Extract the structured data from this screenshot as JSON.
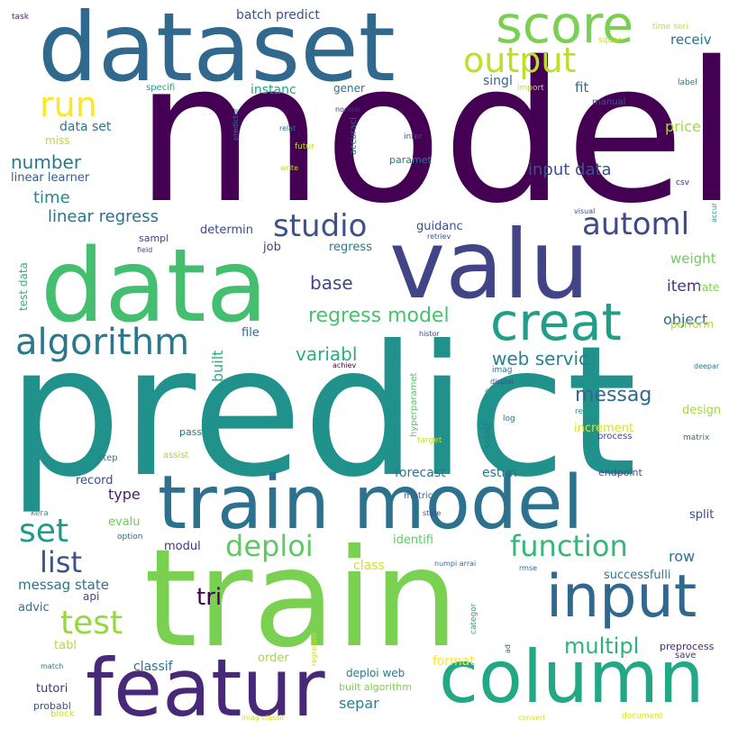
{
  "words": [
    {
      "text": "model",
      "color": "#440154"
    },
    {
      "text": "predict",
      "color": "#21918c"
    },
    {
      "text": "train",
      "color": "#7ad151"
    },
    {
      "text": "dataset",
      "color": "#31688e"
    },
    {
      "text": "data",
      "color": "#44bf70"
    },
    {
      "text": "valu",
      "color": "#414487"
    },
    {
      "text": "train model",
      "color": "#2c728e"
    },
    {
      "text": "featur",
      "color": "#482878"
    },
    {
      "text": "column",
      "color": "#22a884"
    },
    {
      "text": "input",
      "color": "#31688e"
    },
    {
      "text": "score",
      "color": "#7ad151"
    },
    {
      "text": "creat",
      "color": "#1f9e89"
    },
    {
      "text": "output",
      "color": "#bddf26"
    },
    {
      "text": "algorithm",
      "color": "#2a788e"
    },
    {
      "text": "run",
      "color": "#fde725"
    },
    {
      "text": "studio",
      "color": "#3b528b"
    },
    {
      "text": "automl",
      "color": "#3e4989"
    },
    {
      "text": "set",
      "color": "#1f9a8a"
    },
    {
      "text": "deploi",
      "color": "#5ec962"
    },
    {
      "text": "function",
      "color": "#35b779"
    },
    {
      "text": "list",
      "color": "#3b528b"
    },
    {
      "text": "test",
      "color": "#95d840"
    },
    {
      "text": "tri",
      "color": "#440154"
    },
    {
      "text": "multipl",
      "color": "#2db27d"
    },
    {
      "text": "regress model",
      "color": "#4ac16d"
    },
    {
      "text": "number",
      "color": "#2a788e"
    },
    {
      "text": "variabl",
      "color": "#29af7f"
    },
    {
      "text": "web servic",
      "color": "#26828e"
    },
    {
      "text": "messag",
      "color": "#31688e"
    },
    {
      "text": "base",
      "color": "#404688"
    },
    {
      "text": "linear regress",
      "color": "#2c728e"
    },
    {
      "text": "time",
      "color": "#23888e"
    },
    {
      "text": "input data",
      "color": "#3b528b"
    },
    {
      "text": "fit",
      "color": "#31688e"
    },
    {
      "text": "item",
      "color": "#46337e"
    },
    {
      "text": "object",
      "color": "#31688e"
    },
    {
      "text": "weight",
      "color": "#6ece58"
    },
    {
      "text": "price",
      "color": "#9fda3a"
    },
    {
      "text": "receiv",
      "color": "#2c728e"
    },
    {
      "text": "batch predict",
      "color": "#3b528b"
    },
    {
      "text": "instanc",
      "color": "#20a486"
    },
    {
      "text": "gener",
      "color": "#2c728e"
    },
    {
      "text": "singl",
      "color": "#31688e"
    },
    {
      "text": "data set",
      "color": "#2a788e"
    },
    {
      "text": "miss",
      "color": "#bddf26"
    },
    {
      "text": "linear learner",
      "color": "#355f8d"
    },
    {
      "text": "guidanc",
      "color": "#3b528b"
    },
    {
      "text": "determin",
      "color": "#3e4a89"
    },
    {
      "text": "regress",
      "color": "#2a788e"
    },
    {
      "text": "job",
      "color": "#433e85"
    },
    {
      "text": "file",
      "color": "#31688e"
    },
    {
      "text": "built",
      "color": "#27ad81"
    },
    {
      "text": "type",
      "color": "#482173"
    },
    {
      "text": "record",
      "color": "#3e4989"
    },
    {
      "text": "forecast",
      "color": "#2a788e"
    },
    {
      "text": "estim",
      "color": "#2a788e"
    },
    {
      "text": "evalu",
      "color": "#6ece58"
    },
    {
      "text": "modul",
      "color": "#46337e"
    },
    {
      "text": "row",
      "color": "#2c728e"
    },
    {
      "text": "split",
      "color": "#3e4989"
    },
    {
      "text": "class",
      "color": "#d8e219"
    },
    {
      "text": "identifi",
      "color": "#5ec962"
    },
    {
      "text": "messag state",
      "color": "#2c728e"
    },
    {
      "text": "advic",
      "color": "#2c728e"
    },
    {
      "text": "api",
      "color": "#404688"
    },
    {
      "text": "tabl",
      "color": "#b5de2b"
    },
    {
      "text": "classif",
      "color": "#2a788e"
    },
    {
      "text": "tutori",
      "color": "#46337e"
    },
    {
      "text": "separ",
      "color": "#25838e"
    },
    {
      "text": "probabl",
      "color": "#3b528b"
    },
    {
      "text": "deploi web",
      "color": "#29798e"
    },
    {
      "text": "built algorithm",
      "color": "#7ad151"
    },
    {
      "text": "format",
      "color": "#fde725"
    },
    {
      "text": "order",
      "color": "#a5db36"
    },
    {
      "text": "preprocess",
      "color": "#482878"
    },
    {
      "text": "save",
      "color": "#472d7b"
    },
    {
      "text": "increment",
      "color": "#dde318"
    },
    {
      "text": "design",
      "color": "#a5db36"
    },
    {
      "text": "perform",
      "color": "#b5de2b"
    },
    {
      "text": "rate",
      "color": "#7fd34e"
    },
    {
      "text": "successfulli",
      "color": "#2a788e"
    },
    {
      "text": "endpoint",
      "color": "#3b528b"
    },
    {
      "text": "process",
      "color": "#3e4989"
    },
    {
      "text": "matrix",
      "color": "#2c728e"
    },
    {
      "text": "test data",
      "color": "#2db27d"
    },
    {
      "text": "task",
      "color": "#481f70"
    },
    {
      "text": "squar",
      "color": "#bddf26"
    },
    {
      "text": "time seri",
      "color": "#d0e11c"
    },
    {
      "text": "import",
      "color": "#c2df23"
    },
    {
      "text": "specifi",
      "color": "#1fa187"
    },
    {
      "text": "predictor",
      "color": "#2c728e"
    },
    {
      "text": "normal",
      "color": "#46337e"
    },
    {
      "text": "relat",
      "color": "#2c728e"
    },
    {
      "text": "accuraci",
      "color": "#31688e"
    },
    {
      "text": "futur",
      "color": "#bddf26"
    },
    {
      "text": "infer",
      "color": "#3b528b"
    },
    {
      "text": "paramet",
      "color": "#2a788e"
    },
    {
      "text": "write",
      "color": "#bddf26"
    },
    {
      "text": "manual",
      "color": "#3b528b"
    },
    {
      "text": "label",
      "color": "#2c728e"
    },
    {
      "text": "csv",
      "color": "#482878"
    },
    {
      "text": "visual",
      "color": "#3e4989"
    },
    {
      "text": "accur",
      "color": "#21918c"
    },
    {
      "text": "retriev",
      "color": "#3b528b"
    },
    {
      "text": "sampl",
      "color": "#433e85"
    },
    {
      "text": "field",
      "color": "#3e4989"
    },
    {
      "text": "histor",
      "color": "#3e4989"
    },
    {
      "text": "hyperparamet",
      "color": "#52c569"
    },
    {
      "text": "achiev",
      "color": "#440154"
    },
    {
      "text": "imag",
      "color": "#2c728e"
    },
    {
      "text": "displai",
      "color": "#3b528b"
    },
    {
      "text": "appli",
      "color": "#1f9e89"
    },
    {
      "text": "log",
      "color": "#2a788e"
    },
    {
      "text": "select",
      "color": "#2a788e"
    },
    {
      "text": "return",
      "color": "#1fa187"
    },
    {
      "text": "deepar",
      "color": "#2a788e"
    },
    {
      "text": "pass",
      "color": "#2c728e"
    },
    {
      "text": "target",
      "color": "#c2df23"
    },
    {
      "text": "step",
      "color": "#2a788e"
    },
    {
      "text": "assist",
      "color": "#a0da39"
    },
    {
      "text": "metric",
      "color": "#355f8d"
    },
    {
      "text": "state",
      "color": "#3e4989"
    },
    {
      "text": "kera",
      "color": "#1fa187"
    },
    {
      "text": "option",
      "color": "#31688e"
    },
    {
      "text": "numpi arrai",
      "color": "#2c728e"
    },
    {
      "text": "rmse",
      "color": "#31688e"
    },
    {
      "text": "categor",
      "color": "#22a884"
    },
    {
      "text": "regressor",
      "color": "#c8e020"
    },
    {
      "text": "ad",
      "color": "#3b528b"
    },
    {
      "text": "match",
      "color": "#2c728e"
    },
    {
      "text": "block",
      "color": "#c8e020"
    },
    {
      "text": "imag classif",
      "color": "#d0e11c"
    },
    {
      "text": "convert",
      "color": "#d8e219"
    },
    {
      "text": "document",
      "color": "#dde318"
    }
  ]
}
